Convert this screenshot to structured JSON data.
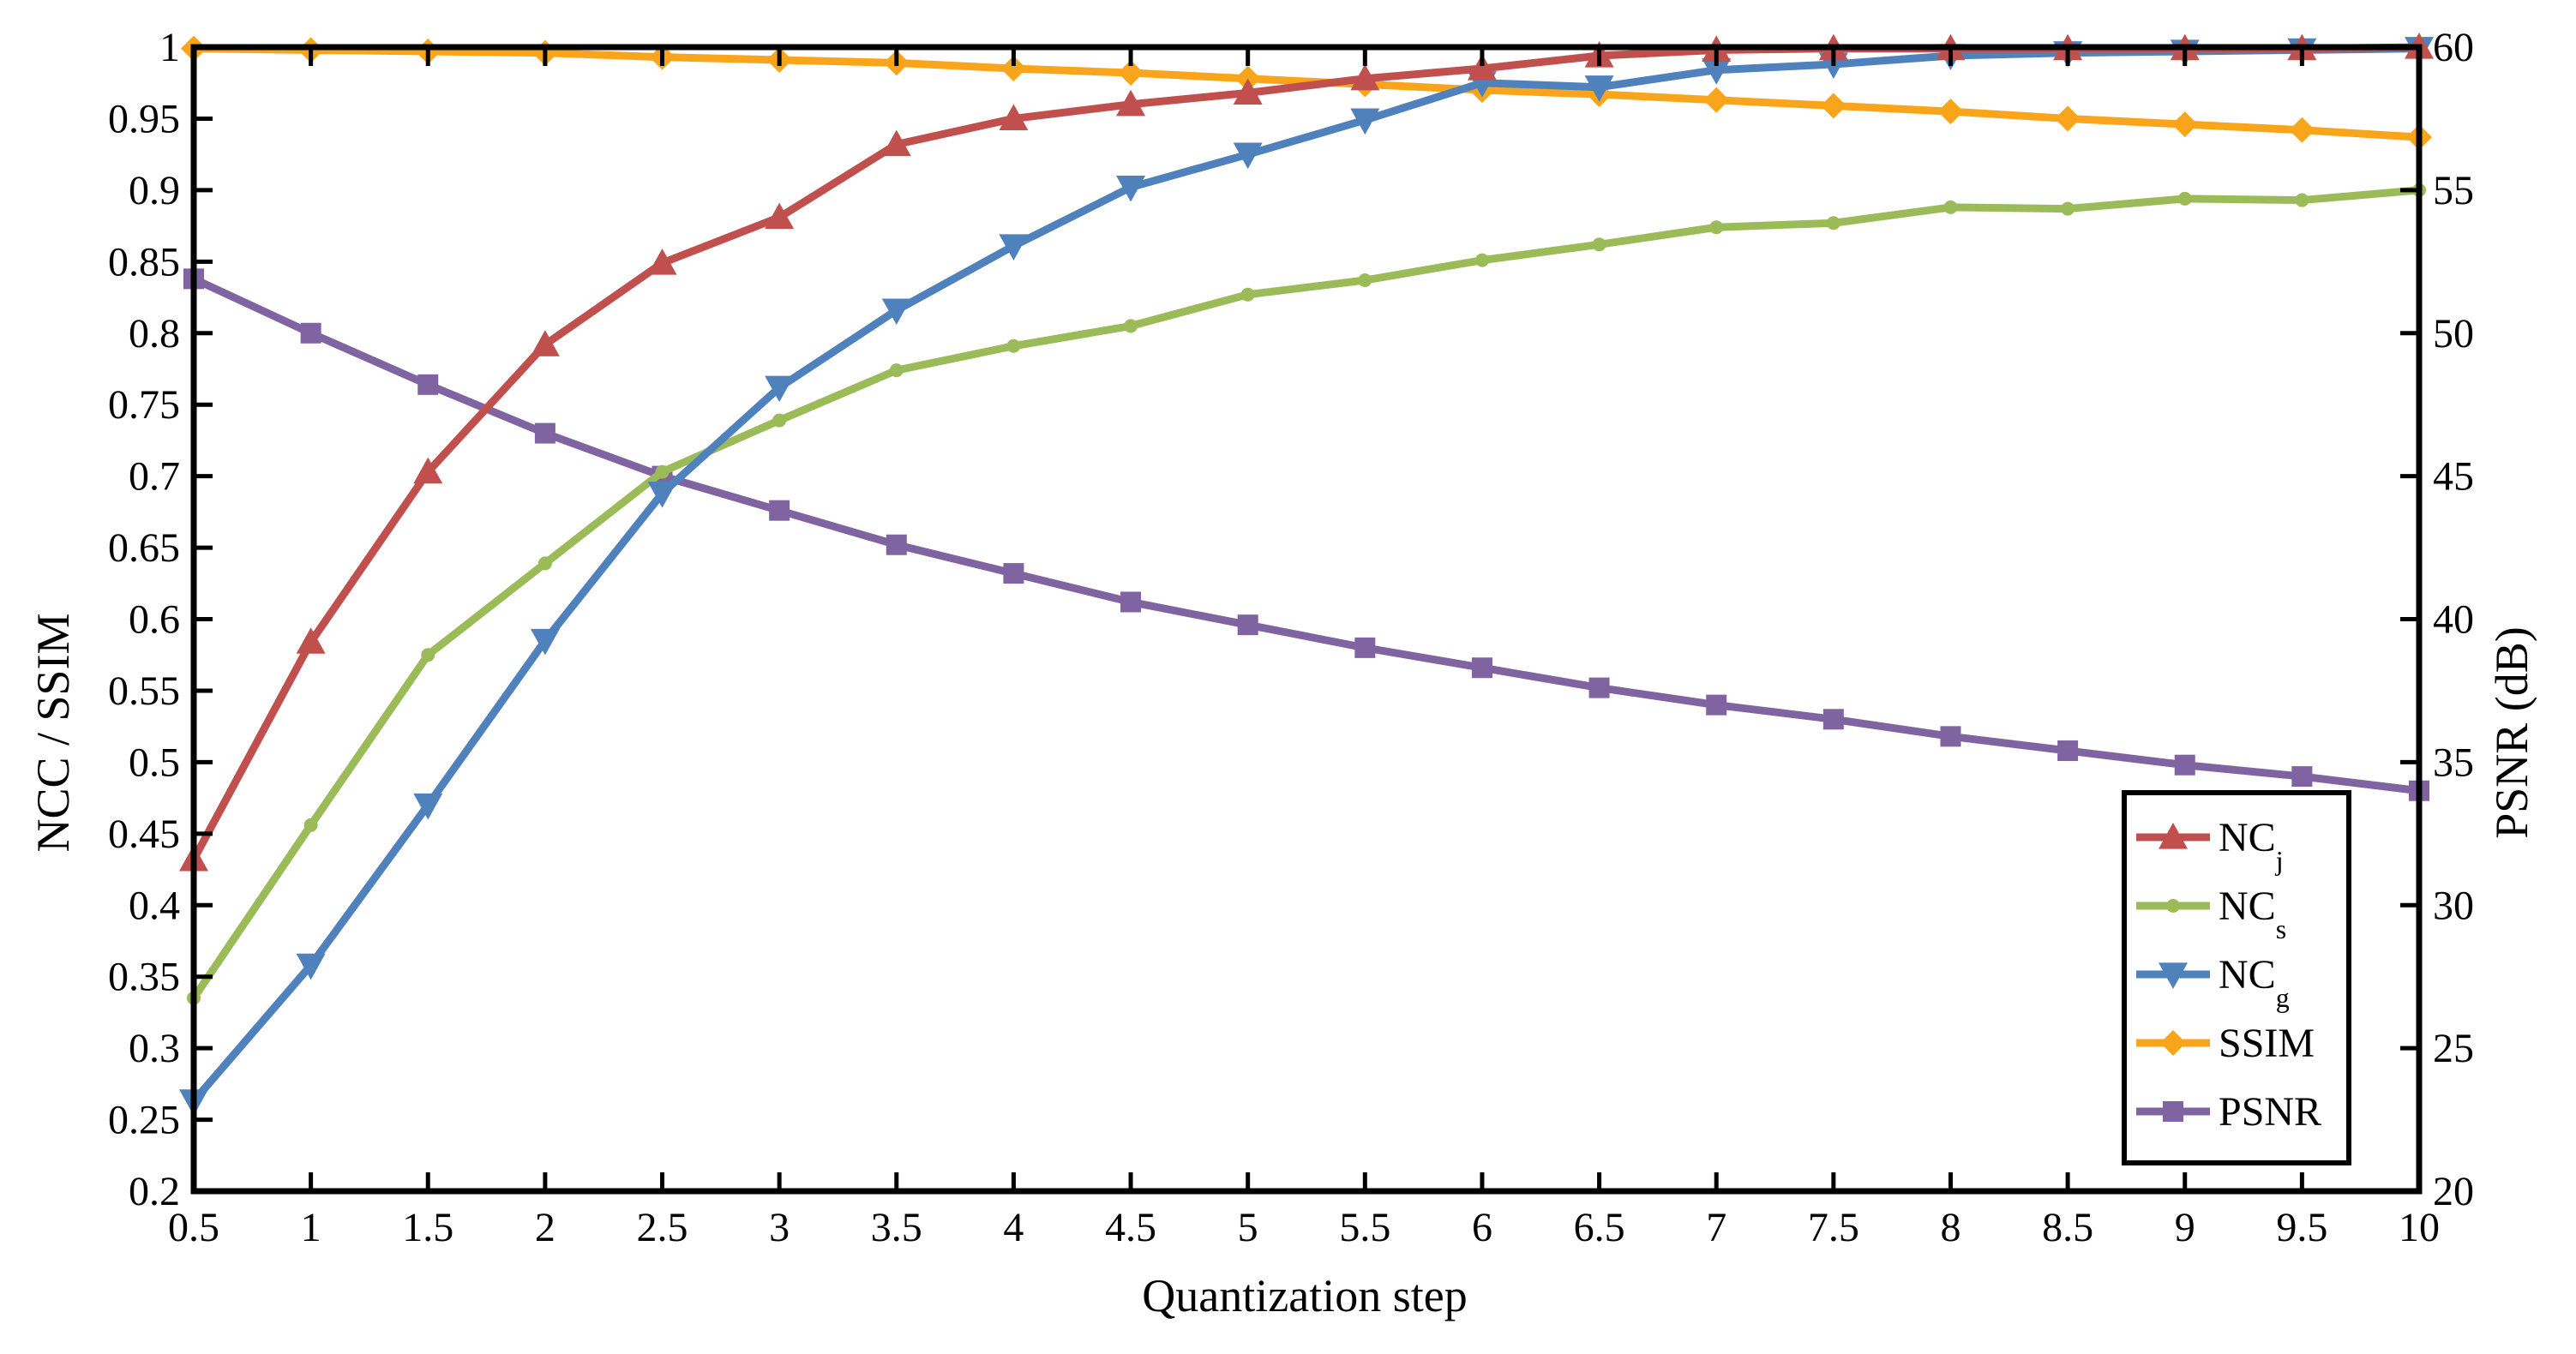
{
  "chart_data": {
    "type": "line",
    "xlabel": "Quantization step",
    "ylabel_left": "NCC / SSIM",
    "ylabel_right": "PSNR (dB)",
    "x": [
      0.5,
      1,
      1.5,
      2,
      2.5,
      3,
      3.5,
      4,
      4.5,
      5,
      5.5,
      6,
      6.5,
      7,
      7.5,
      8,
      8.5,
      9,
      9.5,
      10
    ],
    "x_tick_labels": [
      "0.5",
      "1",
      "1.5",
      "2",
      "2.5",
      "3",
      "3.5",
      "4",
      "4.5",
      "5",
      "5.5",
      "6",
      "6.5",
      "7",
      "7.5",
      "8",
      "8.5",
      "9",
      "9.5",
      "10"
    ],
    "xlim": [
      0.5,
      10
    ],
    "ylim_left": [
      0.2,
      1
    ],
    "ylim_right": [
      20,
      60
    ],
    "y_left_tick_labels": [
      "0.2",
      "0.25",
      "0.3",
      "0.35",
      "0.4",
      "0.45",
      "0.5",
      "0.55",
      "0.6",
      "0.65",
      "0.7",
      "0.75",
      "0.8",
      "0.85",
      "0.9",
      "0.95",
      "1"
    ],
    "y_right_tick_labels": [
      "20",
      "25",
      "30",
      "35",
      "40",
      "45",
      "50",
      "55",
      "60"
    ],
    "legend_position": "bottom-right",
    "grid": false,
    "series": [
      {
        "name": "NC",
        "sub": "j",
        "axis": "left",
        "color": "#c0504d",
        "marker": "triangle-up",
        "values": [
          0.432,
          0.584,
          0.703,
          0.792,
          0.849,
          0.881,
          0.932,
          0.95,
          0.96,
          0.968,
          0.978,
          0.985,
          0.994,
          0.998,
          0.999,
          0.999,
          0.999,
          0.999,
          0.999,
          1.0
        ]
      },
      {
        "name": "NC",
        "sub": "s",
        "axis": "left",
        "color": "#9bbb59",
        "marker": "dot",
        "values": [
          0.335,
          0.456,
          0.575,
          0.639,
          0.703,
          0.739,
          0.774,
          0.791,
          0.805,
          0.827,
          0.837,
          0.851,
          0.862,
          0.874,
          0.877,
          0.888,
          0.887,
          0.894,
          0.893,
          0.9
        ]
      },
      {
        "name": "NC",
        "sub": "g",
        "axis": "left",
        "color": "#4f81bd",
        "marker": "triangle-down",
        "values": [
          0.263,
          0.358,
          0.47,
          0.585,
          0.688,
          0.762,
          0.816,
          0.861,
          0.902,
          0.925,
          0.949,
          0.975,
          0.972,
          0.984,
          0.988,
          0.994,
          0.996,
          0.997,
          0.998,
          0.999
        ]
      },
      {
        "name": "SSIM",
        "sub": "",
        "axis": "left",
        "color": "#f8a51b",
        "marker": "diamond",
        "values": [
          0.999,
          0.998,
          0.997,
          0.996,
          0.993,
          0.991,
          0.989,
          0.985,
          0.982,
          0.978,
          0.974,
          0.97,
          0.967,
          0.963,
          0.959,
          0.955,
          0.95,
          0.946,
          0.942,
          0.937
        ]
      },
      {
        "name": "PSNR",
        "sub": "",
        "axis": "right",
        "color": "#8064a2",
        "marker": "square",
        "values": [
          51.9,
          50.0,
          48.2,
          46.5,
          45.0,
          43.8,
          42.6,
          41.6,
          40.6,
          39.8,
          39.0,
          38.3,
          37.6,
          37.0,
          36.5,
          35.9,
          35.4,
          34.9,
          34.5,
          34.0
        ]
      }
    ]
  }
}
